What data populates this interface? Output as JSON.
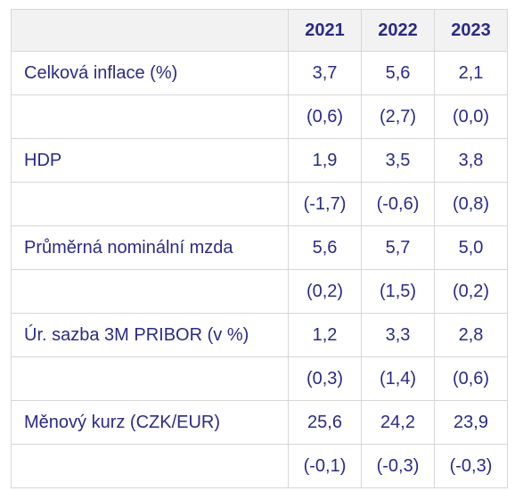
{
  "header": {
    "years": [
      "2021",
      "2022",
      "2023"
    ]
  },
  "rows": [
    {
      "label": "Celková inflace (%)",
      "values": [
        "3,7",
        "5,6",
        "2,1"
      ],
      "changes": [
        "(0,6)",
        "(2,7)",
        "(0,0)"
      ]
    },
    {
      "label": "HDP",
      "values": [
        "1,9",
        "3,5",
        "3,8"
      ],
      "changes": [
        "(-1,7)",
        "(-0,6)",
        "(0,8)"
      ]
    },
    {
      "label": "Průměrná nominální mzda",
      "values": [
        "5,6",
        "5,7",
        "5,0"
      ],
      "changes": [
        "(0,2)",
        "(1,5)",
        "(0,2)"
      ]
    },
    {
      "label": "Úr. sazba 3M PRIBOR (v %)",
      "values": [
        "1,2",
        "3,3",
        "2,8"
      ],
      "changes": [
        "(0,3)",
        "(1,4)",
        "(0,6)"
      ]
    },
    {
      "label": "Měnový kurz (CZK/EUR)",
      "values": [
        "25,6",
        "24,2",
        "23,9"
      ],
      "changes": [
        "(-0,1)",
        "(-0,3)",
        "(-0,3)"
      ]
    }
  ],
  "colors": {
    "text": "#2a2a8c",
    "header_bg": "#f2f2f2",
    "border": "#d7d7d7"
  }
}
